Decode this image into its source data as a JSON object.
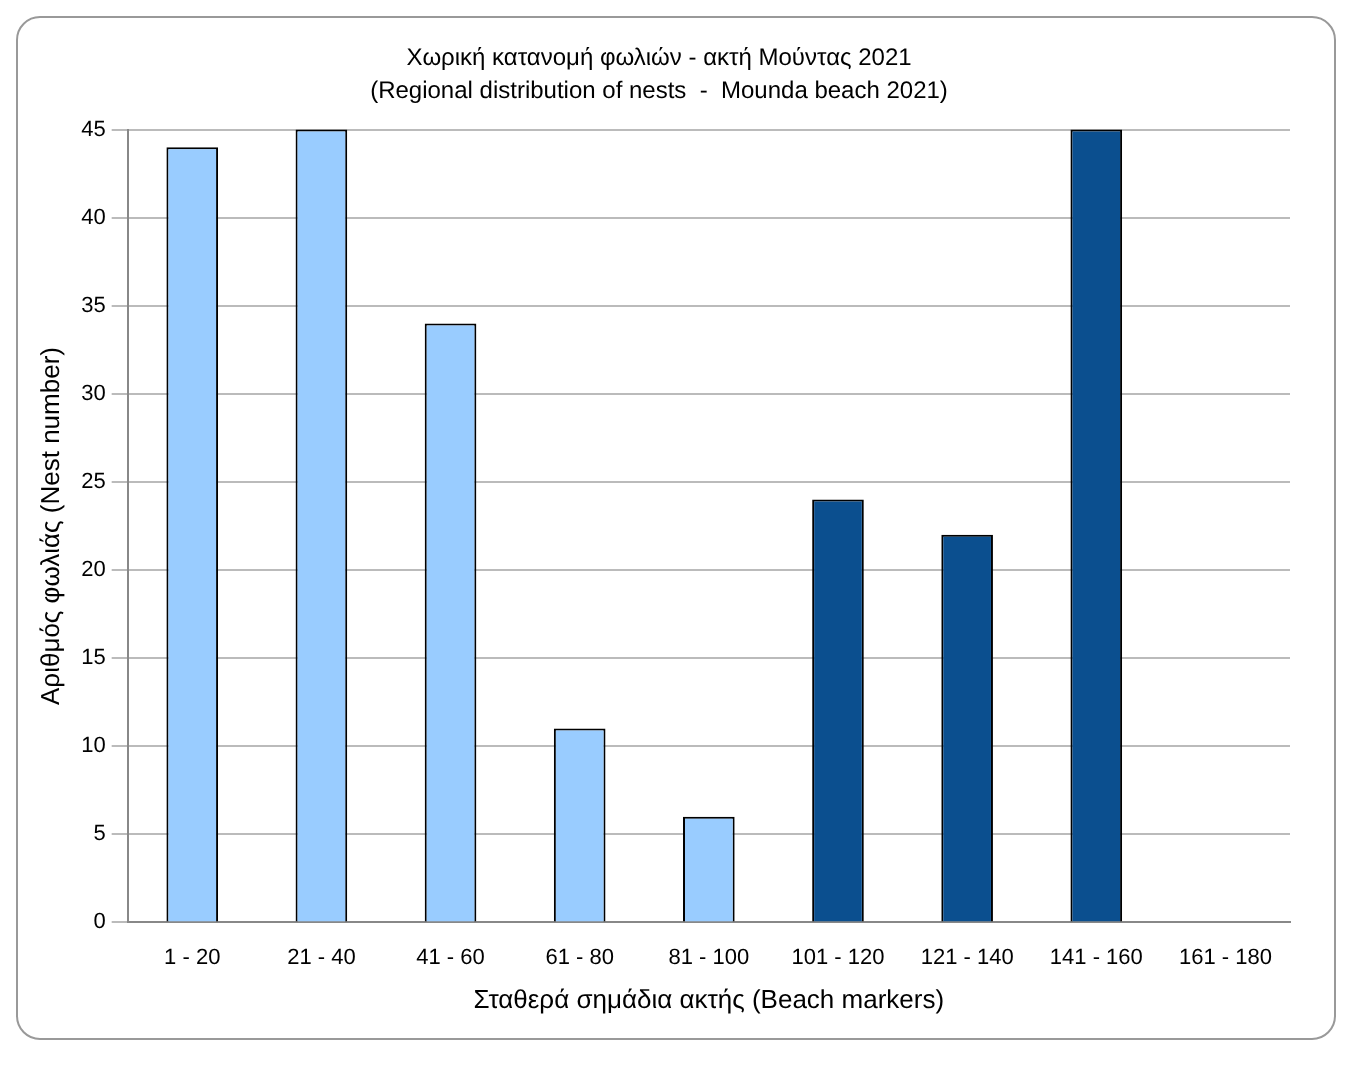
{
  "chart_data": {
    "type": "bar",
    "title": "Χωρική κατανομή φωλιών - ακτή Μούντας 2021",
    "subtitle": "(Regional distribution of nests  -  Mounda beach 2021)",
    "xlabel": "Σταθερά σημάδια ακτής (Beach markers)",
    "ylabel": "Αριθμός φωλιάς (Nest number)",
    "categories": [
      "1 - 20",
      "21 - 40",
      "41 - 60",
      "61 - 80",
      "81 - 100",
      "101 - 120",
      "121 - 140",
      "141 - 160",
      "161 - 180"
    ],
    "values": [
      44,
      45,
      34,
      11,
      6,
      24,
      22,
      45,
      0
    ],
    "colors": [
      "#99ccff",
      "#99ccff",
      "#99ccff",
      "#99ccff",
      "#99ccff",
      "#0b4f8f",
      "#0b4f8f",
      "#0b4f8f",
      "#555555"
    ],
    "ylim": [
      0,
      45
    ],
    "yticks": [
      0,
      5,
      10,
      15,
      20,
      25,
      30,
      35,
      40,
      45
    ],
    "grid": "y",
    "legend": false
  }
}
